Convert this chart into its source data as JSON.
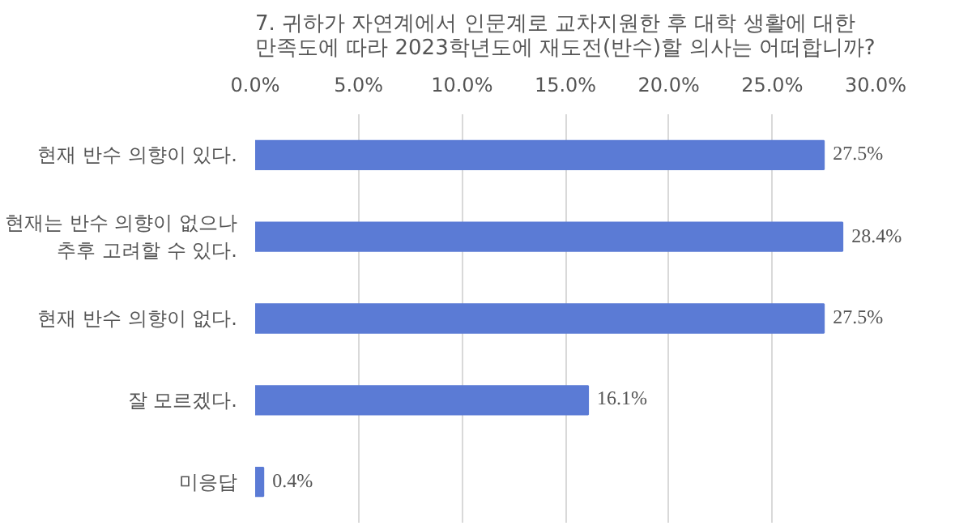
{
  "chart_data": {
    "type": "bar",
    "orientation": "horizontal",
    "title": "7. 귀하가 자연계에서 인문계로 교차지원한 후 대학 생활에 대한\n만족도에 따라  2023학년도에 재도전(반수)할 의사는 어떠합니까?",
    "categories": [
      "현재 반수 의향이 있다.",
      "현재는 반수 의향이 없으나\n추후 고려할 수 있다.",
      "현재 반수 의향이 없다.",
      "잘 모르겠다.",
      "미응답"
    ],
    "values": [
      27.5,
      28.4,
      27.5,
      16.1,
      0.4
    ],
    "value_labels": [
      "27.5%",
      "28.4%",
      "27.5%",
      "16.1%",
      "0.4%"
    ],
    "color": "#5b7bd5",
    "xlim": [
      0,
      30
    ],
    "xticks": [
      {
        "value": 0,
        "label": "0.0%"
      },
      {
        "value": 5,
        "label": "5.0%"
      },
      {
        "value": 10,
        "label": "10.0%"
      },
      {
        "value": 15,
        "label": "15.0%"
      },
      {
        "value": 20,
        "label": "20.0%"
      },
      {
        "value": 25,
        "label": "25.0%"
      },
      {
        "value": 30,
        "label": "30.0%"
      }
    ],
    "grid": "x"
  }
}
